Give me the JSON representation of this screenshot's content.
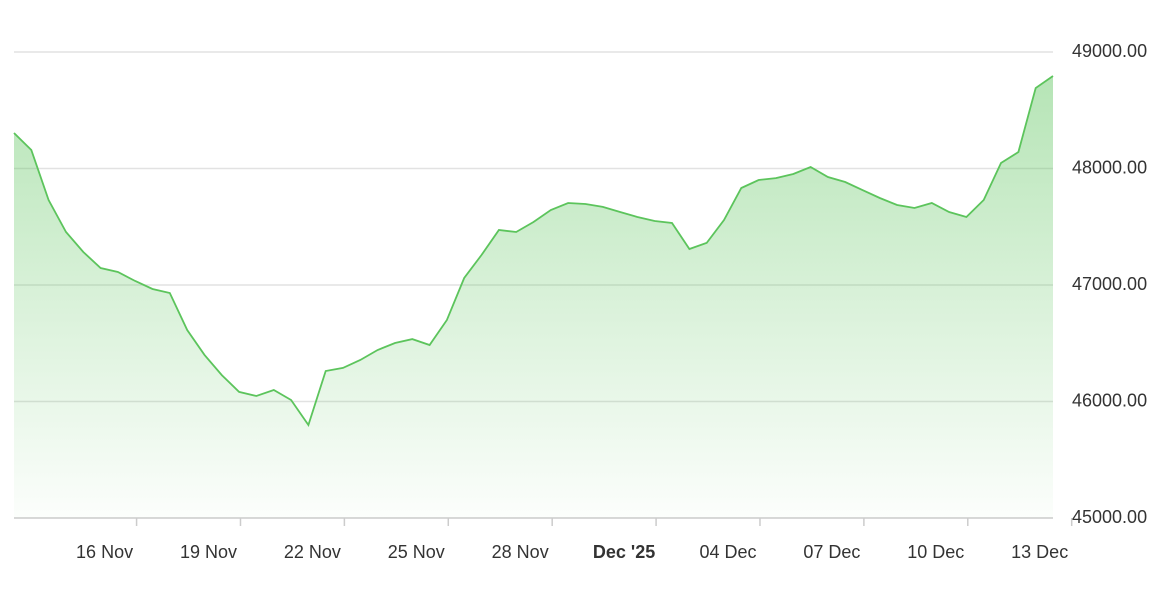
{
  "chart_data": {
    "type": "area",
    "color": "#5cc45c",
    "categories": [
      null,
      null,
      null,
      null,
      null,
      "16 Nov",
      null,
      null,
      null,
      null,
      null,
      "19 Nov",
      null,
      null,
      null,
      null,
      null,
      "22 Nov",
      null,
      null,
      null,
      null,
      null,
      "25 Nov",
      null,
      null,
      null,
      null,
      null,
      "28 Nov",
      null,
      null,
      null,
      null,
      null,
      "Dec '25",
      null,
      null,
      null,
      null,
      null,
      "04 Dec",
      null,
      null,
      null,
      null,
      null,
      "07 Dec",
      null,
      null,
      null,
      null,
      null,
      "10 Dec",
      null,
      null,
      null,
      null,
      null,
      "13 Dec",
      null
    ],
    "values": [
      48305,
      48159,
      47730,
      47455,
      47283,
      47146,
      47112,
      47034,
      46966,
      46931,
      46614,
      46400,
      46227,
      46082,
      46047,
      46099,
      46013,
      45798,
      46262,
      46288,
      46356,
      46442,
      46502,
      46536,
      46485,
      46700,
      47060,
      47258,
      47472,
      47455,
      47541,
      47644,
      47704,
      47695,
      47670,
      47627,
      47584,
      47549,
      47532,
      47309,
      47361,
      47558,
      47833,
      47901,
      47918,
      47953,
      48013,
      47927,
      47884,
      47815,
      47747,
      47687,
      47661,
      47704,
      47627,
      47584,
      47730,
      48047,
      48142,
      48691,
      48794
    ],
    "ylim": [
      45000,
      49000
    ],
    "yticks": [
      {
        "value": 45000,
        "label": "45000.00"
      },
      {
        "value": 46000,
        "label": "46000.00"
      },
      {
        "value": 47000,
        "label": "47000.00"
      },
      {
        "value": 48000,
        "label": "48000.00"
      },
      {
        "value": 49000,
        "label": "49000.00"
      }
    ],
    "grid": true
  }
}
